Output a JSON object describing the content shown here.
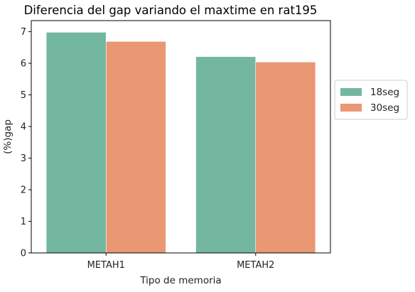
{
  "chart_data": {
    "type": "bar",
    "title": "Diferencia del gap variando el maxtime en rat195",
    "xlabel": "Tipo de memoria",
    "ylabel": "(%)gap",
    "categories": [
      "METAH1",
      "METAH2"
    ],
    "series": [
      {
        "name": "18seg",
        "values": [
          6.98,
          6.21
        ],
        "color": "#74b7a1"
      },
      {
        "name": "30seg",
        "values": [
          6.69,
          6.04
        ],
        "color": "#e99873"
      }
    ],
    "ylim": [
      0,
      7.35
    ],
    "yticks": [
      0,
      1,
      2,
      3,
      4,
      5,
      6,
      7
    ],
    "grid": false,
    "legend_position": "right"
  }
}
